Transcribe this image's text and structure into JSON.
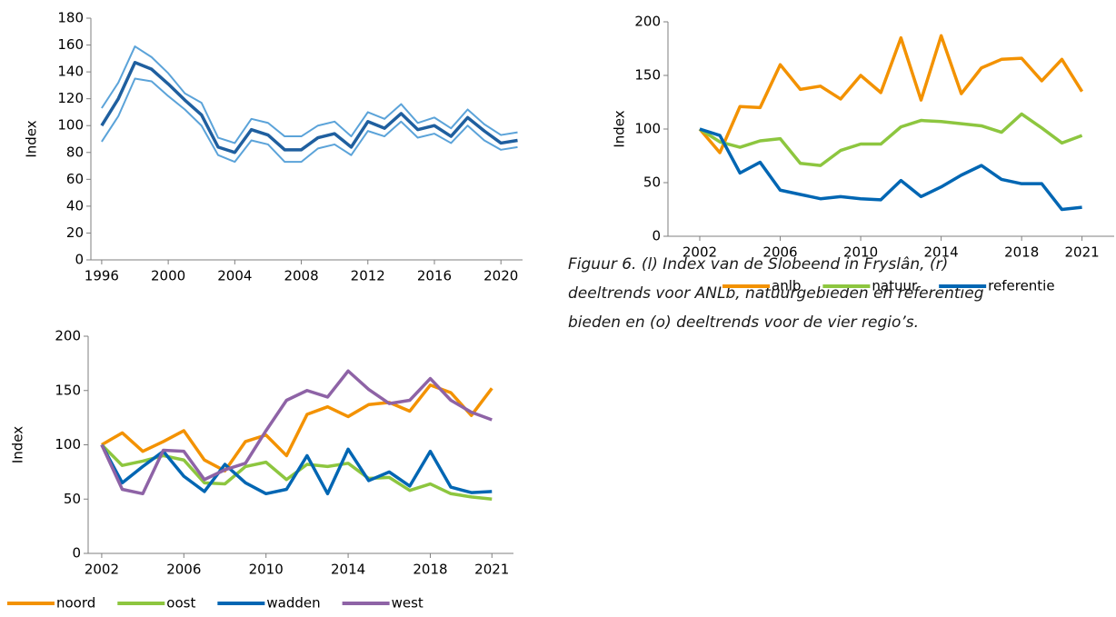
{
  "charts": [
    {
      "chart_data": {
        "type": "line",
        "y_label": "Index",
        "x": [
          1996,
          1997,
          1998,
          1999,
          2000,
          2001,
          2002,
          2003,
          2004,
          2005,
          2006,
          2007,
          2008,
          2009,
          2010,
          2011,
          2012,
          2013,
          2014,
          2015,
          2016,
          2017,
          2018,
          2019,
          2020,
          2021
        ],
        "series": [
          {
            "color": "#5ba3d9",
            "values": [
              113,
              132,
              159,
              151,
              139,
              124,
              117,
              91,
              87,
              105,
              102,
              92,
              92,
              100,
              103,
              92,
              110,
              105,
              116,
              102,
              106,
              98,
              112,
              101,
              93,
              95
            ]
          },
          {
            "color": "#5ba3d9",
            "values": [
              88,
              107,
              135,
              133,
              122,
              112,
              100,
              78,
              73,
              89,
              86,
              73,
              73,
              83,
              86,
              78,
              96,
              92,
              103,
              91,
              94,
              87,
              100,
              89,
              82,
              84
            ]
          },
          {
            "color": "#1f5f9f",
            "values": [
              100,
              120,
              147,
              142,
              131,
              119,
              108,
              84,
              80,
              97,
              93,
              82,
              82,
              91,
              94,
              84,
              103,
              98,
              109,
              97,
              100,
              92,
              106,
              96,
              87,
              89
            ]
          }
        ],
        "xlim": [
          1995.35,
          2021.3
        ],
        "xticks": [
          1996,
          2000,
          2004,
          2008,
          2012,
          2016,
          2020
        ],
        "ylim": [
          0,
          180
        ],
        "yticks": [
          0,
          20,
          40,
          60,
          80,
          100,
          120,
          140,
          160,
          180
        ]
      }
    },
    {
      "chart_data": {
        "type": "line",
        "y_label": "Index",
        "x": [
          2002,
          2003,
          2004,
          2005,
          2006,
          2007,
          2008,
          2009,
          2010,
          2011,
          2012,
          2013,
          2014,
          2015,
          2016,
          2017,
          2018,
          2019,
          2020,
          2021
        ],
        "series": [
          {
            "name": "anlb",
            "color": "#f39200",
            "values": [
              100,
              78,
              121,
              120,
              160,
              137,
              140,
              128,
              150,
              134,
              185,
              127,
              187,
              133,
              157,
              165,
              166,
              145,
              165,
              135
            ]
          },
          {
            "name": "natuur",
            "color": "#8dc63f",
            "values": [
              100,
              88,
              83,
              89,
              91,
              68,
              66,
              80,
              86,
              86,
              102,
              108,
              107,
              105,
              103,
              97,
              114,
              101,
              87,
              94
            ]
          },
          {
            "name": "referentie",
            "color": "#0066b3",
            "values": [
              100,
              94,
              59,
              69,
              43,
              39,
              35,
              37,
              35,
              34,
              52,
              37,
              46,
              57,
              66,
              53,
              49,
              49,
              25,
              27
            ]
          }
        ],
        "xlim": [
          2000.42,
          2022.6
        ],
        "xticks": [
          2002,
          2006,
          2010,
          2014,
          2018,
          2021
        ],
        "ylim": [
          0,
          200
        ],
        "yticks": [
          0,
          50,
          100,
          150,
          200
        ],
        "legend": "bottom"
      }
    },
    {
      "chart_data": {
        "type": "line",
        "y_label": "Index",
        "x": [
          2002,
          2003,
          2004,
          2005,
          2006,
          2007,
          2008,
          2009,
          2010,
          2011,
          2012,
          2013,
          2014,
          2015,
          2016,
          2017,
          2018,
          2019,
          2020,
          2021
        ],
        "series": [
          {
            "name": "noord",
            "color": "#f39200",
            "values": [
              100,
              111,
              94,
              103,
              113,
              86,
              76,
              103,
              109,
              90,
              128,
              135,
              126,
              137,
              139,
              131,
              155,
              148,
              127,
              152
            ]
          },
          {
            "name": "oost",
            "color": "#8dc63f",
            "values": [
              100,
              81,
              85,
              90,
              86,
              65,
              64,
              80,
              84,
              68,
              82,
              80,
              83,
              69,
              70,
              58,
              64,
              55,
              52,
              50
            ]
          },
          {
            "name": "wadden",
            "color": "#0066b3",
            "values": [
              100,
              65,
              80,
              94,
              71,
              57,
              82,
              65,
              55,
              59,
              90,
              55,
              96,
              67,
              75,
              62,
              94,
              61,
              56,
              57
            ]
          },
          {
            "name": "west",
            "color": "#8e63a6",
            "values": [
              100,
              59,
              55,
              95,
              94,
              68,
              77,
              83,
              113,
              141,
              150,
              144,
              168,
              151,
              138,
              141,
              161,
              141,
              130,
              123
            ]
          }
        ],
        "xlim": [
          2001.34,
          2022.05
        ],
        "xticks": [
          2002,
          2006,
          2010,
          2014,
          2018,
          2021
        ],
        "ylim": [
          0,
          200
        ],
        "yticks": [
          0,
          50,
          100,
          150,
          200
        ],
        "legend": "bottom"
      }
    }
  ],
  "caption": {
    "lines": [
      "Figuur 6. (l) Index van de Slobeend in Fryslân, (r)",
      "deeltrends voor ANLb, natuurgebieden en referentieg",
      "bieden en (o) deeltrends voor de vier regio’s."
    ]
  }
}
